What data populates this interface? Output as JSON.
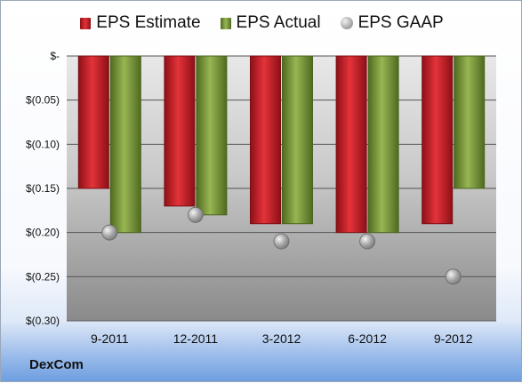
{
  "chart_data": {
    "type": "bar",
    "categories": [
      "9-2011",
      "12-2011",
      "3-2012",
      "6-2012",
      "9-2012"
    ],
    "series": [
      {
        "name": "EPS Estimate",
        "type": "bar",
        "color": "#d0202a",
        "values": [
          -0.15,
          -0.17,
          -0.19,
          -0.2,
          -0.19
        ]
      },
      {
        "name": "EPS Actual",
        "type": "bar",
        "color": "#7a9a3a",
        "values": [
          -0.2,
          -0.18,
          -0.19,
          -0.2,
          -0.15
        ]
      },
      {
        "name": "EPS GAAP",
        "type": "scatter",
        "color": "#a8a8a8",
        "values": [
          -0.2,
          -0.18,
          -0.21,
          -0.21,
          -0.25
        ]
      }
    ],
    "yticks": [
      0,
      -0.05,
      -0.1,
      -0.15,
      -0.2,
      -0.25,
      -0.3
    ],
    "ytick_labels": [
      "$-",
      "$(0.05)",
      "$(0.10)",
      "$(0.15)",
      "$(0.20)",
      "$(0.25)",
      "$(0.30)"
    ],
    "ylim": [
      -0.3,
      0
    ],
    "legend_position": "top",
    "grid": true
  },
  "legend": {
    "estimate": "EPS Estimate",
    "actual": "EPS Actual",
    "gaap": "EPS GAAP"
  },
  "company": "DexCom"
}
